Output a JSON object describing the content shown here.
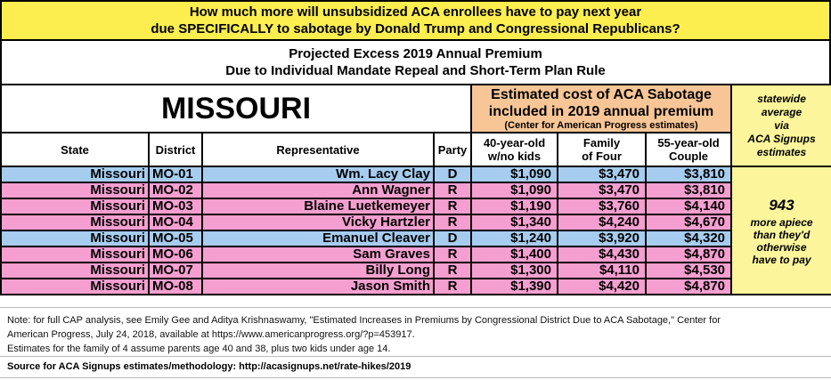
{
  "header": {
    "line1": "How much more will unsubsidized ACA enrollees have to pay next year",
    "line2": "due SPECIFICALLY to sabotage by Donald Trump and Congressional Republicans?"
  },
  "subtitle": {
    "line1": "Projected Excess 2019 Annual Premium",
    "line2": "Due to Individual Mandate Repeal and Short-Term Plan Rule"
  },
  "state_name": "MISSOURI",
  "cost_header": {
    "line1": "Estimated cost of ACA Sabotage",
    "line2": "included in 2019 annual premium",
    "line3": "(Center for American Progress estimates)"
  },
  "side": {
    "header": [
      "statewide",
      "average",
      "via",
      "ACA Signups",
      "estimates"
    ],
    "value": "943",
    "text": [
      "more apiece",
      "than they'd",
      "otherwise",
      "have to pay"
    ]
  },
  "columns": {
    "state": "State",
    "district": "District",
    "rep": "Representative",
    "party": "Party",
    "c1a": "40-year-old",
    "c1b": "w/no kids",
    "c2a": "Family",
    "c2b": "of Four",
    "c3a": "55-year-old",
    "c3b": "Couple"
  },
  "colors": {
    "D": "#a6cdf0",
    "R": "#f59fd0",
    "header": "#fcee4f",
    "cost": "#f8c696",
    "side": "#fcf59c"
  },
  "rows": [
    {
      "state": "Missouri",
      "district": "MO-01",
      "rep": "Wm. Lacy Clay",
      "party": "D",
      "single": "$1,090",
      "family": "$3,470",
      "couple": "$3,810"
    },
    {
      "state": "Missouri",
      "district": "MO-02",
      "rep": "Ann Wagner",
      "party": "R",
      "single": "$1,090",
      "family": "$3,470",
      "couple": "$3,810"
    },
    {
      "state": "Missouri",
      "district": "MO-03",
      "rep": "Blaine Luetkemeyer",
      "party": "R",
      "single": "$1,190",
      "family": "$3,760",
      "couple": "$4,140"
    },
    {
      "state": "Missouri",
      "district": "MO-04",
      "rep": "Vicky Hartzler",
      "party": "R",
      "single": "$1,340",
      "family": "$4,240",
      "couple": "$4,670"
    },
    {
      "state": "Missouri",
      "district": "MO-05",
      "rep": "Emanuel Cleaver",
      "party": "D",
      "single": "$1,240",
      "family": "$3,920",
      "couple": "$4,320"
    },
    {
      "state": "Missouri",
      "district": "MO-06",
      "rep": "Sam Graves",
      "party": "R",
      "single": "$1,400",
      "family": "$4,430",
      "couple": "$4,870"
    },
    {
      "state": "Missouri",
      "district": "MO-07",
      "rep": "Billy Long",
      "party": "R",
      "single": "$1,300",
      "family": "$4,110",
      "couple": "$4,530"
    },
    {
      "state": "Missouri",
      "district": "MO-08",
      "rep": "Jason Smith",
      "party": "R",
      "single": "$1,390",
      "family": "$4,420",
      "couple": "$4,870"
    }
  ],
  "note": {
    "line1": "Note: for full CAP analysis, see Emily Gee and Aditya Krishnaswamy, \"Estimated Increases in Premiums by Congressional District Due to ACA Sabotage,\" Center for",
    "line2": "American Progress, July 24, 2018, available at https://www.americanprogress.org/?p=453917.",
    "line3": "Estimates for the family of 4 assume parents age 40 and 38, plus two kids under age 14."
  },
  "source": "Source for ACA Signups estimates/methodology: http://acasignups.net/rate-hikes/2019"
}
